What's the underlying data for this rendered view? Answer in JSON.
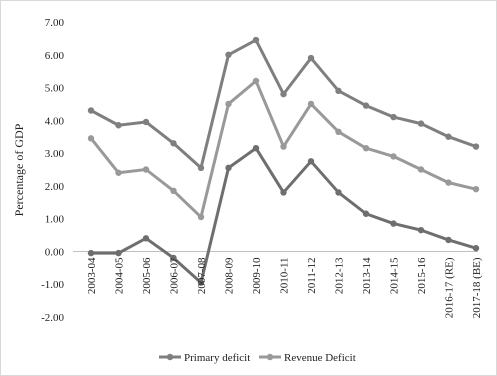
{
  "chart_data": {
    "type": "line",
    "title": "",
    "xlabel": "",
    "ylabel": "Percentage of GDP",
    "ylim": [
      -2,
      7
    ],
    "y_ticks": [
      "7.00",
      "6.00",
      "5.00",
      "4.00",
      "3.00",
      "2.00",
      "1.00",
      "0.00",
      "-1.00",
      "-2.00"
    ],
    "categories": [
      "2003-04",
      "2004-05",
      "2005-06",
      "2006-07",
      "2007-08",
      "2008-09",
      "2009-10",
      "2010-11",
      "2011-12",
      "2012-13",
      "2013-14",
      "2014-15",
      "2015-16",
      "2016-17 (RE)",
      "2017-18 (BE)"
    ],
    "series": [
      {
        "name": "",
        "color": "#7f7f7f",
        "values": [
          4.3,
          3.85,
          3.95,
          3.3,
          2.55,
          6.0,
          6.45,
          4.8,
          5.9,
          4.9,
          4.45,
          4.1,
          3.9,
          3.5,
          3.2
        ]
      },
      {
        "name": "Revenue Deficit",
        "color": "#999999",
        "values": [
          3.45,
          2.4,
          2.5,
          1.85,
          1.05,
          4.5,
          5.2,
          3.2,
          4.5,
          3.65,
          3.15,
          2.9,
          2.5,
          2.1,
          1.9
        ]
      },
      {
        "name": "Primary deficit",
        "color": "#6e6e6e",
        "values": [
          -0.05,
          -0.05,
          0.4,
          -0.2,
          -0.95,
          2.55,
          3.15,
          1.8,
          2.75,
          1.8,
          1.15,
          0.85,
          0.65,
          0.35,
          0.1
        ]
      }
    ],
    "legend": {
      "position": "bottom",
      "entries": [
        "Primary deficit",
        "Revenue Deficit"
      ]
    },
    "grid": false
  }
}
